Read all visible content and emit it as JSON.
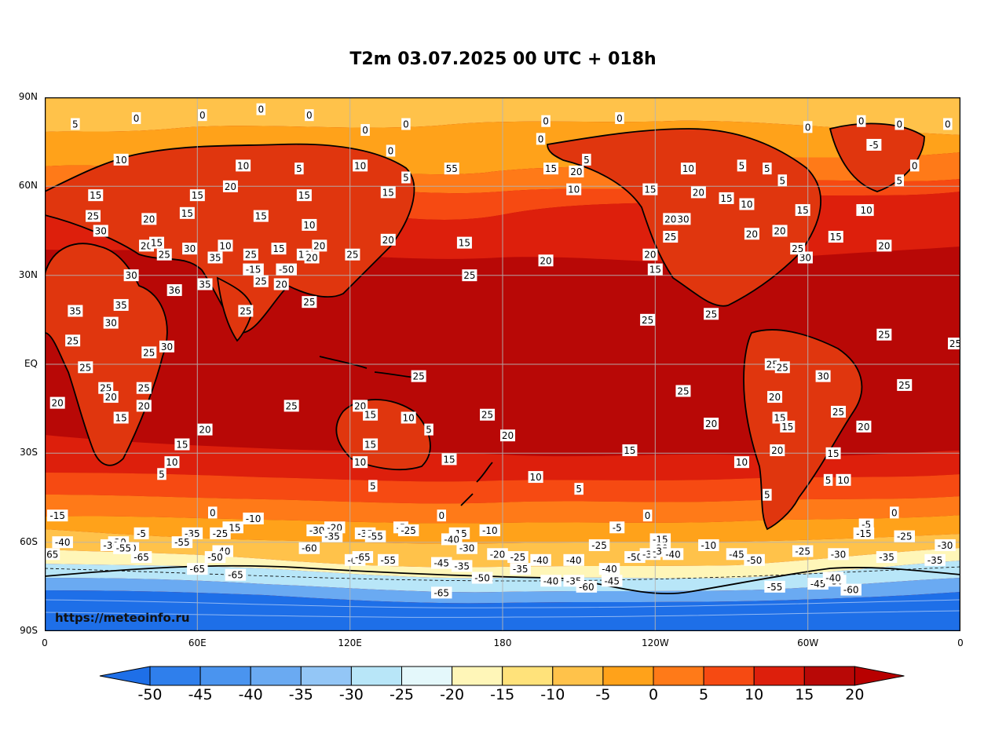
{
  "title": "T2m 03.07.2025 00 UTC + 018h",
  "watermark": "https://meteoinfo.ru",
  "latitude_labels": [
    "90N",
    "60N",
    "30N",
    "EQ",
    "30S",
    "60S",
    "90S"
  ],
  "longitude_labels": [
    "0",
    "60E",
    "120E",
    "180",
    "120W",
    "60W",
    "0"
  ],
  "colorbar": {
    "ticks": [
      "-50",
      "-45",
      "-40",
      "-35",
      "-30",
      "-25",
      "-20",
      "-15",
      "-10",
      "-5",
      "0",
      "5",
      "10",
      "15",
      "20"
    ],
    "colors": [
      "#1e6fe8",
      "#2f7fec",
      "#4a94ef",
      "#6aaaf2",
      "#93c6f6",
      "#b8e6f8",
      "#e4f8fb",
      "#fff6b8",
      "#ffe27a",
      "#ffc24a",
      "#ffa21a",
      "#ff7a18",
      "#f64a12",
      "#dd1f0c",
      "#b80806",
      "#a00000"
    ],
    "extend_min_color": "#1e6fe8",
    "extend_max_color": "#b80000"
  },
  "contour_labels": [
    {
      "t": "0",
      "lon": 85,
      "lat": 86
    },
    {
      "t": "0",
      "lon": 36,
      "lat": 83
    },
    {
      "t": "0",
      "lon": 62,
      "lat": 84
    },
    {
      "t": "5",
      "lon": 12,
      "lat": 81
    },
    {
      "t": "0",
      "lon": 104,
      "lat": 84
    },
    {
      "t": "0",
      "lon": 126,
      "lat": 79
    },
    {
      "t": "0",
      "lon": 142,
      "lat": 81
    },
    {
      "t": "0",
      "lon": 197,
      "lat": 82
    },
    {
      "t": "0",
      "lon": 226,
      "lat": 83
    },
    {
      "t": "0",
      "lon": 300,
      "lat": 80
    },
    {
      "t": "0",
      "lon": 321,
      "lat": 82
    },
    {
      "t": "0",
      "lon": 336,
      "lat": 81
    },
    {
      "t": "0",
      "lon": 355,
      "lat": 81
    },
    {
      "t": "0",
      "lon": 195,
      "lat": 76
    },
    {
      "t": "-5",
      "lon": 326,
      "lat": 74
    },
    {
      "t": "0",
      "lon": 342,
      "lat": 67
    },
    {
      "t": "5",
      "lon": 336,
      "lat": 62
    },
    {
      "t": "0",
      "lon": 136,
      "lat": 72
    },
    {
      "t": "10",
      "lon": 30,
      "lat": 69
    },
    {
      "t": "10",
      "lon": 78,
      "lat": 67
    },
    {
      "t": "5",
      "lon": 100,
      "lat": 66
    },
    {
      "t": "10",
      "lon": 124,
      "lat": 67
    },
    {
      "t": "55",
      "lon": 160,
      "lat": 66
    },
    {
      "t": "5",
      "lon": 142,
      "lat": 63
    },
    {
      "t": "5",
      "lon": 213,
      "lat": 69
    },
    {
      "t": "20",
      "lon": 209,
      "lat": 65
    },
    {
      "t": "15",
      "lon": 199,
      "lat": 66
    },
    {
      "t": "10",
      "lon": 208,
      "lat": 59
    },
    {
      "t": "15",
      "lon": 238,
      "lat": 59
    },
    {
      "t": "10",
      "lon": 253,
      "lat": 66
    },
    {
      "t": "5",
      "lon": 274,
      "lat": 67
    },
    {
      "t": "5",
      "lon": 284,
      "lat": 66
    },
    {
      "t": "5",
      "lon": 290,
      "lat": 62
    },
    {
      "t": "20",
      "lon": 257,
      "lat": 58
    },
    {
      "t": "15",
      "lon": 268,
      "lat": 56
    },
    {
      "t": "10",
      "lon": 276,
      "lat": 54
    },
    {
      "t": "15",
      "lon": 298,
      "lat": 52
    },
    {
      "t": "10",
      "lon": 322,
      "lat": 52
    },
    {
      "t": "20",
      "lon": 73,
      "lat": 60
    },
    {
      "t": "15",
      "lon": 60,
      "lat": 57
    },
    {
      "t": "15",
      "lon": 102,
      "lat": 57
    },
    {
      "t": "15",
      "lon": 135,
      "lat": 58
    },
    {
      "t": "15",
      "lon": 20,
      "lat": 57
    },
    {
      "t": "20",
      "lon": 41,
      "lat": 49
    },
    {
      "t": "25",
      "lon": 19,
      "lat": 50
    },
    {
      "t": "15",
      "lon": 56,
      "lat": 51
    },
    {
      "t": "15",
      "lon": 85,
      "lat": 50
    },
    {
      "t": "10",
      "lon": 104,
      "lat": 47
    },
    {
      "t": "20",
      "lon": 135,
      "lat": 42
    },
    {
      "t": "15",
      "lon": 165,
      "lat": 41
    },
    {
      "t": "20",
      "lon": 197,
      "lat": 35
    },
    {
      "t": "20",
      "lon": 246,
      "lat": 49
    },
    {
      "t": "30",
      "lon": 251,
      "lat": 49
    },
    {
      "t": "25",
      "lon": 246,
      "lat": 43
    },
    {
      "t": "20",
      "lon": 278,
      "lat": 44
    },
    {
      "t": "20",
      "lon": 289,
      "lat": 45
    },
    {
      "t": "15",
      "lon": 311,
      "lat": 43
    },
    {
      "t": "10",
      "lon": 323,
      "lat": 52
    },
    {
      "t": "20",
      "lon": 330,
      "lat": 40
    },
    {
      "t": "30",
      "lon": 299,
      "lat": 36
    },
    {
      "t": "25",
      "lon": 296,
      "lat": 39
    },
    {
      "t": "20",
      "lon": 238,
      "lat": 37
    },
    {
      "t": "15",
      "lon": 240,
      "lat": 32
    },
    {
      "t": "30",
      "lon": 22,
      "lat": 45
    },
    {
      "t": "20",
      "lon": 40,
      "lat": 40
    },
    {
      "t": "15",
      "lon": 44,
      "lat": 41
    },
    {
      "t": "25",
      "lon": 47,
      "lat": 37
    },
    {
      "t": "30",
      "lon": 57,
      "lat": 39
    },
    {
      "t": "35",
      "lon": 67,
      "lat": 36
    },
    {
      "t": "10",
      "lon": 71,
      "lat": 40
    },
    {
      "t": "25",
      "lon": 81,
      "lat": 37
    },
    {
      "t": "15",
      "lon": 92,
      "lat": 39
    },
    {
      "t": "10",
      "lon": 102,
      "lat": 37
    },
    {
      "t": "20",
      "lon": 108,
      "lat": 40
    },
    {
      "t": "20",
      "lon": 105,
      "lat": 36
    },
    {
      "t": "-15",
      "lon": 82,
      "lat": 32
    },
    {
      "t": "-50",
      "lon": 95,
      "lat": 32
    },
    {
      "t": "25",
      "lon": 85,
      "lat": 28
    },
    {
      "t": "20",
      "lon": 93,
      "lat": 27
    },
    {
      "t": "25",
      "lon": 121,
      "lat": 37
    },
    {
      "t": "25",
      "lon": 167,
      "lat": 30
    },
    {
      "t": "30",
      "lon": 34,
      "lat": 30
    },
    {
      "t": "35",
      "lon": 63,
      "lat": 27
    },
    {
      "t": "36",
      "lon": 51,
      "lat": 25
    },
    {
      "t": "25",
      "lon": 104,
      "lat": 21
    },
    {
      "t": "25",
      "lon": 79,
      "lat": 18
    },
    {
      "t": "35",
      "lon": 12,
      "lat": 18
    },
    {
      "t": "35",
      "lon": 30,
      "lat": 20
    },
    {
      "t": "30",
      "lon": 26,
      "lat": 14
    },
    {
      "t": "30",
      "lon": 48,
      "lat": 6
    },
    {
      "t": "25",
      "lon": 11,
      "lat": 8
    },
    {
      "t": "25",
      "lon": 41,
      "lat": 4
    },
    {
      "t": "25",
      "lon": 16,
      "lat": -1
    },
    {
      "t": "25",
      "lon": 237,
      "lat": 15
    },
    {
      "t": "25",
      "lon": 262,
      "lat": 17
    },
    {
      "t": "25",
      "lon": 330,
      "lat": 10
    },
    {
      "t": "25",
      "lon": 358,
      "lat": 7
    },
    {
      "t": "25",
      "lon": 286,
      "lat": 0
    },
    {
      "t": "25",
      "lon": 290,
      "lat": -1
    },
    {
      "t": "30",
      "lon": 306,
      "lat": -4
    },
    {
      "t": "25",
      "lon": 338,
      "lat": -7
    },
    {
      "t": "25",
      "lon": 251,
      "lat": -9
    },
    {
      "t": "25",
      "lon": 147,
      "lat": -4
    },
    {
      "t": "25",
      "lon": 39,
      "lat": -8
    },
    {
      "t": "25",
      "lon": 24,
      "lat": -8
    },
    {
      "t": "20",
      "lon": 26,
      "lat": -11
    },
    {
      "t": "20",
      "lon": 39,
      "lat": -14
    },
    {
      "t": "20",
      "lon": 5,
      "lat": -13
    },
    {
      "t": "25",
      "lon": 97,
      "lat": -14
    },
    {
      "t": "20",
      "lon": 124,
      "lat": -14
    },
    {
      "t": "15",
      "lon": 128,
      "lat": -17
    },
    {
      "t": "10",
      "lon": 143,
      "lat": -18
    },
    {
      "t": "5",
      "lon": 151,
      "lat": -22
    },
    {
      "t": "25",
      "lon": 174,
      "lat": -17
    },
    {
      "t": "20",
      "lon": 287,
      "lat": -11
    },
    {
      "t": "25",
      "lon": 312,
      "lat": -16
    },
    {
      "t": "15",
      "lon": 289,
      "lat": -18
    },
    {
      "t": "15",
      "lon": 292,
      "lat": -21
    },
    {
      "t": "20",
      "lon": 322,
      "lat": -21
    },
    {
      "t": "20",
      "lon": 262,
      "lat": -20
    },
    {
      "t": "15",
      "lon": 30,
      "lat": -18
    },
    {
      "t": "20",
      "lon": 63,
      "lat": -22
    },
    {
      "t": "20",
      "lon": 182,
      "lat": -24
    },
    {
      "t": "15",
      "lon": 54,
      "lat": -27
    },
    {
      "t": "15",
      "lon": 128,
      "lat": -27
    },
    {
      "t": "15",
      "lon": 230,
      "lat": -29
    },
    {
      "t": "20",
      "lon": 288,
      "lat": -29
    },
    {
      "t": "15",
      "lon": 310,
      "lat": -30
    },
    {
      "t": "15",
      "lon": 159,
      "lat": -32
    },
    {
      "t": "10",
      "lon": 50,
      "lat": -33
    },
    {
      "t": "10",
      "lon": 124,
      "lat": -33
    },
    {
      "t": "10",
      "lon": 274,
      "lat": -33
    },
    {
      "t": "5",
      "lon": 46,
      "lat": -37
    },
    {
      "t": "10",
      "lon": 193,
      "lat": -38
    },
    {
      "t": "10",
      "lon": 314,
      "lat": -39
    },
    {
      "t": "5",
      "lon": 308,
      "lat": -39
    },
    {
      "t": "5",
      "lon": 129,
      "lat": -41
    },
    {
      "t": "5",
      "lon": 210,
      "lat": -42
    },
    {
      "t": "5",
      "lon": 284,
      "lat": -44
    },
    {
      "t": "0",
      "lon": 66,
      "lat": -50
    },
    {
      "t": "0",
      "lon": 156,
      "lat": -51
    },
    {
      "t": "0",
      "lon": 237,
      "lat": -51
    },
    {
      "t": "0",
      "lon": 334,
      "lat": -50
    },
    {
      "t": "-15",
      "lon": 5,
      "lat": -51
    },
    {
      "t": "-10",
      "lon": 82,
      "lat": -52
    },
    {
      "t": "-15",
      "lon": 74,
      "lat": -55
    },
    {
      "t": "-20",
      "lon": 114,
      "lat": -55
    },
    {
      "t": "-30",
      "lon": 107,
      "lat": -56
    },
    {
      "t": "-5",
      "lon": 140,
      "lat": -55
    },
    {
      "t": "-25",
      "lon": 143,
      "lat": -56
    },
    {
      "t": "-10",
      "lon": 175,
      "lat": -56
    },
    {
      "t": "-15",
      "lon": 163,
      "lat": -57
    },
    {
      "t": "-5",
      "lon": 225,
      "lat": -55
    },
    {
      "t": "-5",
      "lon": 323,
      "lat": -54
    },
    {
      "t": "-15",
      "lon": 322,
      "lat": -57
    },
    {
      "t": "-25",
      "lon": 338,
      "lat": -58
    },
    {
      "t": "-35",
      "lon": 113,
      "lat": -58
    },
    {
      "t": "-35",
      "lon": 126,
      "lat": -57
    },
    {
      "t": "-55",
      "lon": 130,
      "lat": -58
    },
    {
      "t": "-40",
      "lon": 160,
      "lat": -59
    },
    {
      "t": "-15",
      "lon": 242,
      "lat": -59
    },
    {
      "t": "-20",
      "lon": 242,
      "lat": -62
    },
    {
      "t": "-10",
      "lon": 261,
      "lat": -61
    },
    {
      "t": "-25",
      "lon": 298,
      "lat": -63
    },
    {
      "t": "-30",
      "lon": 312,
      "lat": -64
    },
    {
      "t": "-30",
      "lon": 354,
      "lat": -61
    },
    {
      "t": "-25",
      "lon": 218,
      "lat": -61
    },
    {
      "t": "-5",
      "lon": 38,
      "lat": -57
    },
    {
      "t": "-35",
      "lon": 58,
      "lat": -57
    },
    {
      "t": "-25",
      "lon": 69,
      "lat": -57
    },
    {
      "t": "-55",
      "lon": 54,
      "lat": -60
    },
    {
      "t": "-40",
      "lon": 70,
      "lat": -63
    },
    {
      "t": "-50",
      "lon": 67,
      "lat": -65
    },
    {
      "t": "-60",
      "lon": 104,
      "lat": -62
    },
    {
      "t": "-40",
      "lon": 7,
      "lat": -60
    },
    {
      "t": "-20",
      "lon": 29,
      "lat": -60
    },
    {
      "t": "-30",
      "lon": 26,
      "lat": -61
    },
    {
      "t": "-30",
      "lon": 33,
      "lat": -62
    },
    {
      "t": "-55",
      "lon": 31,
      "lat": -62
    },
    {
      "t": "-65",
      "lon": 38,
      "lat": -65
    },
    {
      "t": "-65",
      "lon": 60,
      "lat": -69
    },
    {
      "t": "-65",
      "lon": 75,
      "lat": -71
    },
    {
      "t": "-60",
      "lon": 122,
      "lat": -66
    },
    {
      "t": "-65",
      "lon": 125,
      "lat": -65
    },
    {
      "t": "-55",
      "lon": 135,
      "lat": -66
    },
    {
      "t": "-45",
      "lon": 156,
      "lat": -67
    },
    {
      "t": "-35",
      "lon": 164,
      "lat": -68
    },
    {
      "t": "-30",
      "lon": 166,
      "lat": -62
    },
    {
      "t": "-20",
      "lon": 178,
      "lat": -64
    },
    {
      "t": "-25",
      "lon": 186,
      "lat": -65
    },
    {
      "t": "-40",
      "lon": 195,
      "lat": -66
    },
    {
      "t": "-35",
      "lon": 187,
      "lat": -69
    },
    {
      "t": "-40",
      "lon": 208,
      "lat": -66
    },
    {
      "t": "-40",
      "lon": 222,
      "lat": -69
    },
    {
      "t": "-50",
      "lon": 232,
      "lat": -65
    },
    {
      "t": "-30",
      "lon": 238,
      "lat": -64
    },
    {
      "t": "-35",
      "lon": 242,
      "lat": -63
    },
    {
      "t": "-40",
      "lon": 247,
      "lat": -64
    },
    {
      "t": "-45",
      "lon": 272,
      "lat": -64
    },
    {
      "t": "-50",
      "lon": 279,
      "lat": -66
    },
    {
      "t": "-35",
      "lon": 331,
      "lat": -65
    },
    {
      "t": "-35",
      "lon": 350,
      "lat": -66
    },
    {
      "t": "-45",
      "lon": 223,
      "lat": -73
    },
    {
      "t": "-50",
      "lon": 172,
      "lat": -72
    },
    {
      "t": "-40",
      "lon": 199,
      "lat": -73
    },
    {
      "t": "-35",
      "lon": 208,
      "lat": -73
    },
    {
      "t": "-60",
      "lon": 213,
      "lat": -75
    },
    {
      "t": "-65",
      "lon": 156,
      "lat": -77
    },
    {
      "t": "-45",
      "lon": 304,
      "lat": -74
    },
    {
      "t": "-50",
      "lon": 311,
      "lat": -73
    },
    {
      "t": "-40",
      "lon": 310,
      "lat": -72
    },
    {
      "t": "-60",
      "lon": 317,
      "lat": -76
    },
    {
      "t": "-55",
      "lon": 287,
      "lat": -75
    },
    {
      "t": "65",
      "lon": 3,
      "lat": -64
    }
  ]
}
